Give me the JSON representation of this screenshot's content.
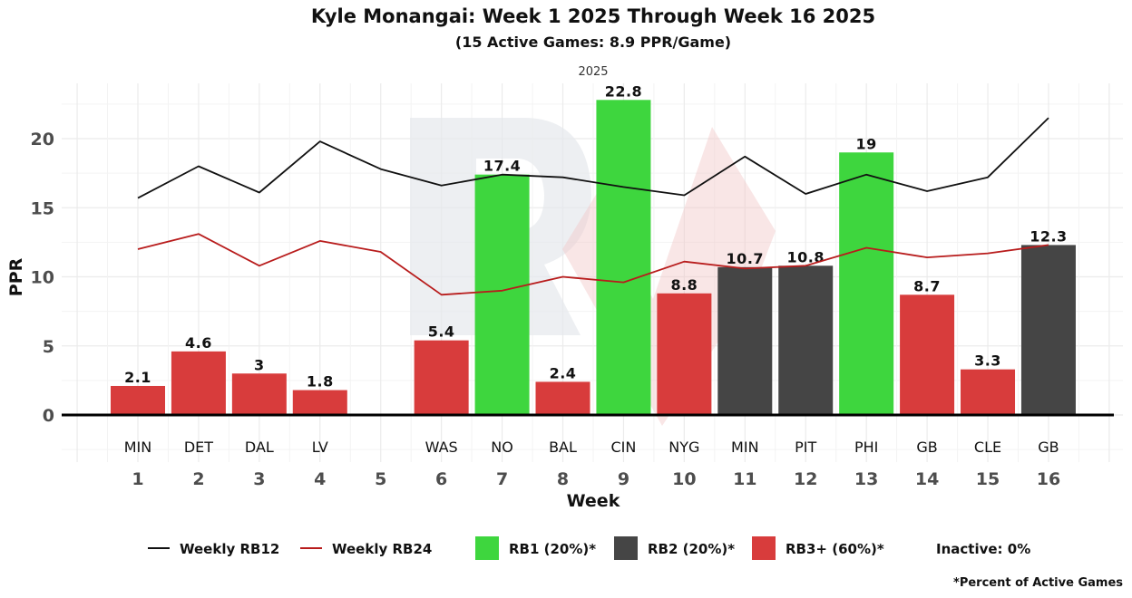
{
  "chart_data": {
    "type": "bar",
    "title": "Kyle Monangai: Week 1 2025 Through Week 16 2025",
    "subtitle": "(15 Active Games: 8.9 PPR/Game)",
    "facet_label": "2025",
    "xlabel": "Week",
    "ylabel": "PPR",
    "ylim": [
      -3.5,
      24
    ],
    "xlim": [
      -0.25,
      17.25
    ],
    "yticks": [
      0,
      5,
      10,
      15,
      20
    ],
    "grid": true,
    "categories": [
      "1",
      "2",
      "3",
      "4",
      "5",
      "6",
      "7",
      "8",
      "9",
      "10",
      "11",
      "12",
      "13",
      "14",
      "15",
      "16"
    ],
    "opponents": [
      "MIN",
      "DET",
      "DAL",
      "LV",
      "",
      "WAS",
      "NO",
      "BAL",
      "CIN",
      "NYG",
      "MIN",
      "PIT",
      "PHI",
      "GB",
      "CLE",
      "GB"
    ],
    "values": [
      2.1,
      4.6,
      3,
      1.8,
      null,
      5.4,
      17.4,
      2.4,
      22.8,
      8.8,
      10.7,
      10.8,
      19,
      8.7,
      3.3,
      12.3
    ],
    "value_labels": [
      "2.1",
      "4.6",
      "3",
      "1.8",
      "",
      "5.4",
      "17.4",
      "2.4",
      "22.8",
      "8.8",
      "10.7",
      "10.8",
      "19",
      "8.7",
      "3.3",
      "12.3"
    ],
    "tiers": [
      "RB3+",
      "RB3+",
      "RB3+",
      "RB3+",
      "Inactive",
      "RB3+",
      "RB1",
      "RB3+",
      "RB1",
      "RB3+",
      "RB2",
      "RB2",
      "RB1",
      "RB3+",
      "RB3+",
      "RB2"
    ],
    "tier_colors": {
      "RB1": "#3ed63e",
      "RB2": "#454545",
      "RB3+": "#d83c3c"
    },
    "series": [
      {
        "name": "Weekly RB12",
        "type": "line",
        "color": "#111111",
        "values": [
          15.7,
          18.0,
          16.1,
          19.8,
          17.8,
          16.6,
          17.4,
          17.2,
          16.5,
          15.9,
          18.7,
          16.0,
          17.4,
          16.2,
          17.2,
          21.5
        ]
      },
      {
        "name": "Weekly RB24",
        "type": "line",
        "color": "#b81c1c",
        "values": [
          12.0,
          13.1,
          10.8,
          12.6,
          11.8,
          8.7,
          9.0,
          10.0,
          9.6,
          11.1,
          10.6,
          10.8,
          12.1,
          11.4,
          11.7,
          12.3
        ]
      }
    ],
    "legend": {
      "position": "bottom",
      "items": [
        {
          "label": "Weekly RB12",
          "kind": "line",
          "color": "#111111"
        },
        {
          "label": "Weekly RB24",
          "kind": "line",
          "color": "#b81c1c"
        },
        {
          "label": "RB1 (20%)*",
          "kind": "box",
          "color": "#3ed63e"
        },
        {
          "label": "RB2 (20%)*",
          "kind": "box",
          "color": "#454545"
        },
        {
          "label": "RB3+ (60%)*",
          "kind": "box",
          "color": "#d83c3c"
        },
        {
          "label": "Inactive: 0%",
          "kind": "text"
        }
      ]
    },
    "footnote": "*Percent of Active Games"
  }
}
